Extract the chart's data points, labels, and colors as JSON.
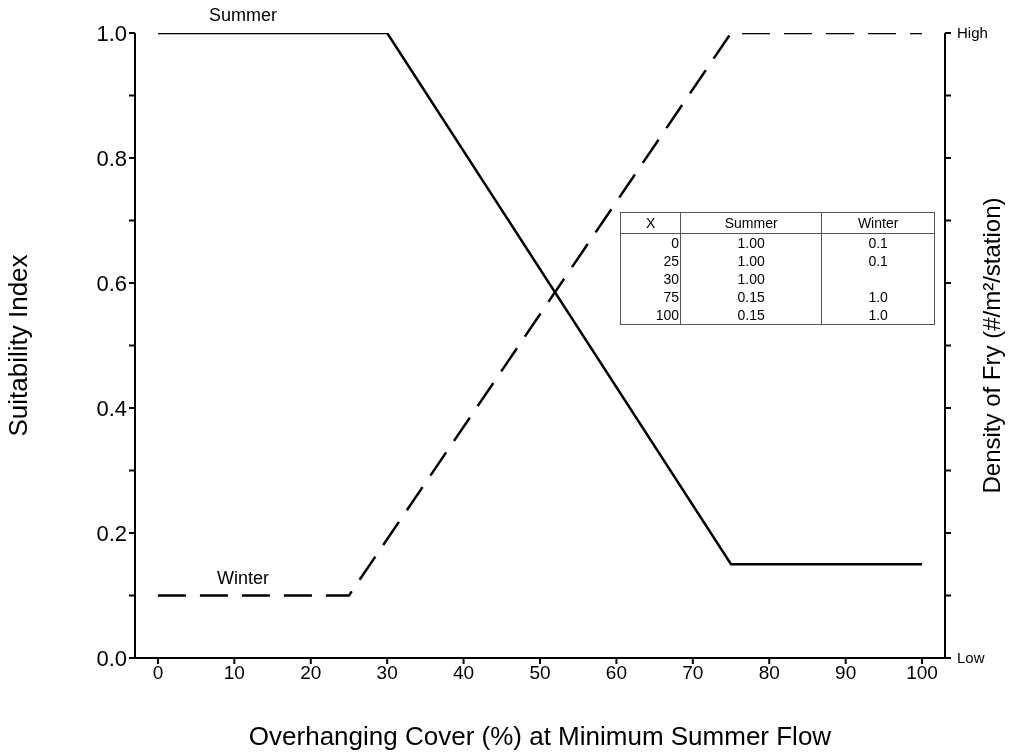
{
  "chart_data": [
    {
      "type": "line",
      "xlabel": "Overhanging Cover (%) at Minimum Summer Flow",
      "ylabel": "Suitability Index",
      "y2label": "Density of Fry (#/m²/station)",
      "x": [
        0,
        25,
        30,
        75,
        100
      ],
      "series": [
        {
          "name": "Summer",
          "color": "#000000",
          "line_style": "solid",
          "values": [
            1.0,
            1.0,
            1.0,
            0.15,
            0.15
          ]
        },
        {
          "name": "Winter",
          "color": "#000000",
          "line_style": "dashed",
          "values": [
            0.1,
            0.1,
            null,
            1.0,
            1.0
          ]
        }
      ],
      "xlim": [
        -3,
        103
      ],
      "xticks": [
        0,
        10,
        20,
        30,
        40,
        50,
        60,
        70,
        80,
        90,
        100
      ],
      "ylim": [
        0,
        1
      ],
      "yticks": [
        {
          "value": 0,
          "label": "0.0"
        },
        {
          "value": 0.1,
          "label": null
        },
        0.2,
        {
          "value": 0.3,
          "label": null
        },
        0.4,
        {
          "value": 0.5,
          "label": null
        },
        0.6,
        {
          "value": 0.7,
          "label": null
        },
        0.8,
        {
          "value": 0.9,
          "label": null
        },
        {
          "value": 1,
          "label": "1.0"
        }
      ],
      "annotations": [
        "High",
        "Low"
      ],
      "marker": "none"
    },
    {
      "type": "other",
      "cell_labels": [
        [
          "X",
          "Summer",
          "Winter"
        ],
        [
          "0",
          "1.00",
          "0.1"
        ],
        [
          "25",
          "1.00",
          "0.1"
        ],
        [
          "30",
          "1.00",
          null
        ],
        [
          "75",
          "0.15",
          "1.0"
        ],
        [
          "100",
          "0.15",
          "1.0"
        ]
      ]
    }
  ]
}
